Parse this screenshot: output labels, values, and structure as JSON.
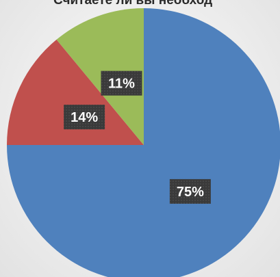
{
  "chart_data": {
    "type": "pie",
    "title": "Считаете ли вы необход",
    "categories": [
      "",
      "",
      ""
    ],
    "values": [
      75,
      14,
      11
    ],
    "value_labels": [
      "75%",
      "14%",
      "11%"
    ],
    "colors": [
      "#4f81bd",
      "#c0504d",
      "#9bbb59"
    ],
    "start_angle_deg": 0,
    "direction": "clockwise",
    "legend": "none"
  }
}
